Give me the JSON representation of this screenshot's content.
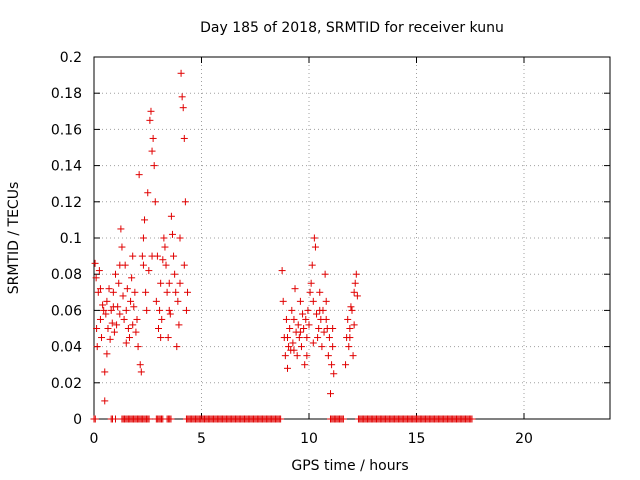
{
  "chart_data": {
    "type": "scatter",
    "title": "Day 185 of 2018, SRMTID for receiver kunu",
    "xlabel": "GPS time / hours",
    "ylabel": "SRMTID / TECUs",
    "xlim": [
      0,
      24
    ],
    "ylim": [
      0,
      0.2
    ],
    "xticks": [
      0,
      5,
      10,
      15,
      20
    ],
    "xtick_labels": [
      "0",
      "5",
      "10",
      "15",
      "20"
    ],
    "yticks": [
      0,
      0.02,
      0.04,
      0.06,
      0.08,
      0.1,
      0.12,
      0.14,
      0.16,
      0.18,
      0.2
    ],
    "ytick_labels": [
      "0",
      "0.02",
      "0.04",
      "0.06",
      "0.08",
      "0.1",
      "0.12",
      "0.14",
      "0.16",
      "0.18",
      "0.2"
    ],
    "grid": true,
    "marker": "+",
    "color": "#e00000",
    "series": [
      {
        "name": "SRMTID",
        "points": [
          [
            0.05,
            0.086
          ],
          [
            0.1,
            0.078
          ],
          [
            0.12,
            0.05
          ],
          [
            0.15,
            0.04
          ],
          [
            0.2,
            0.07
          ],
          [
            0.25,
            0.082
          ],
          [
            0.3,
            0.055
          ],
          [
            0.35,
            0.045
          ],
          [
            0.4,
            0.063
          ],
          [
            0.45,
            0.06
          ],
          [
            0.5,
            0.026
          ],
          [
            0.55,
            0.058
          ],
          [
            0.6,
            0.065
          ],
          [
            0.65,
            0.05
          ],
          [
            0.7,
            0.072
          ],
          [
            0.75,
            0.044
          ],
          [
            0.8,
            0.06
          ],
          [
            0.85,
            0.053
          ],
          [
            0.9,
            0.07
          ],
          [
            0.95,
            0.048
          ],
          [
            1.0,
            0.08
          ],
          [
            1.05,
            0.052
          ],
          [
            1.1,
            0.062
          ],
          [
            1.15,
            0.075
          ],
          [
            1.2,
            0.058
          ],
          [
            1.25,
            0.105
          ],
          [
            1.3,
            0.095
          ],
          [
            1.35,
            0.068
          ],
          [
            1.4,
            0.055
          ],
          [
            1.45,
            0.085
          ],
          [
            1.5,
            0.06
          ],
          [
            1.55,
            0.072
          ],
          [
            1.6,
            0.05
          ],
          [
            1.65,
            0.045
          ],
          [
            1.7,
            0.065
          ],
          [
            1.75,
            0.078
          ],
          [
            1.8,
            0.09
          ],
          [
            1.85,
            0.062
          ],
          [
            1.9,
            0.07
          ],
          [
            1.95,
            0.048
          ],
          [
            2.0,
            0.055
          ],
          [
            2.05,
            0.04
          ],
          [
            2.1,
            0.135
          ],
          [
            2.15,
            0.03
          ],
          [
            2.2,
            0.026
          ],
          [
            2.25,
            0.09
          ],
          [
            2.3,
            0.1
          ],
          [
            2.35,
            0.11
          ],
          [
            2.4,
            0.07
          ],
          [
            2.45,
            0.06
          ],
          [
            2.5,
            0.125
          ],
          [
            2.55,
            0.082
          ],
          [
            2.6,
            0.165
          ],
          [
            2.65,
            0.17
          ],
          [
            2.7,
            0.148
          ],
          [
            2.75,
            0.155
          ],
          [
            2.8,
            0.14
          ],
          [
            2.85,
            0.12
          ],
          [
            2.9,
            0.065
          ],
          [
            2.95,
            0.09
          ],
          [
            3.0,
            0.05
          ],
          [
            3.05,
            0.06
          ],
          [
            3.1,
            0.075
          ],
          [
            3.15,
            0.055
          ],
          [
            3.2,
            0.088
          ],
          [
            3.25,
            0.1
          ],
          [
            3.3,
            0.095
          ],
          [
            3.35,
            0.085
          ],
          [
            3.4,
            0.07
          ],
          [
            3.45,
            0.045
          ],
          [
            3.5,
            0.06
          ],
          [
            3.55,
            0.058
          ],
          [
            3.6,
            0.112
          ],
          [
            3.65,
            0.102
          ],
          [
            3.7,
            0.09
          ],
          [
            3.75,
            0.08
          ],
          [
            3.8,
            0.07
          ],
          [
            3.85,
            0.04
          ],
          [
            3.9,
            0.065
          ],
          [
            3.95,
            0.052
          ],
          [
            4.0,
            0.075
          ],
          [
            4.05,
            0.191
          ],
          [
            4.1,
            0.178
          ],
          [
            4.15,
            0.172
          ],
          [
            4.2,
            0.155
          ],
          [
            4.25,
            0.12
          ],
          [
            4.3,
            0.06
          ],
          [
            4.35,
            0.07
          ],
          [
            0.3,
            0.072
          ],
          [
            0.6,
            0.036
          ],
          [
            0.9,
            0.062
          ],
          [
            1.2,
            0.085
          ],
          [
            1.5,
            0.042
          ],
          [
            1.8,
            0.052
          ],
          [
            2.3,
            0.085
          ],
          [
            2.7,
            0.09
          ],
          [
            3.1,
            0.045
          ],
          [
            3.5,
            0.075
          ],
          [
            4.0,
            0.1
          ],
          [
            4.2,
            0.085
          ],
          [
            0.5,
            0.01
          ],
          [
            1.0,
            0.0
          ],
          [
            8.75,
            0.082
          ],
          [
            8.8,
            0.065
          ],
          [
            8.85,
            0.045
          ],
          [
            8.9,
            0.035
          ],
          [
            8.95,
            0.055
          ],
          [
            9.0,
            0.028
          ],
          [
            9.05,
            0.04
          ],
          [
            9.1,
            0.05
          ],
          [
            9.15,
            0.038
          ],
          [
            9.2,
            0.06
          ],
          [
            9.25,
            0.042
          ],
          [
            9.3,
            0.055
          ],
          [
            9.35,
            0.072
          ],
          [
            9.4,
            0.048
          ],
          [
            9.45,
            0.035
          ],
          [
            9.5,
            0.052
          ],
          [
            9.55,
            0.045
          ],
          [
            9.6,
            0.065
          ],
          [
            9.65,
            0.04
          ],
          [
            9.7,
            0.058
          ],
          [
            9.75,
            0.05
          ],
          [
            9.8,
            0.03
          ],
          [
            9.85,
            0.055
          ],
          [
            9.9,
            0.045
          ],
          [
            9.95,
            0.06
          ],
          [
            10.0,
            0.052
          ],
          [
            10.05,
            0.07
          ],
          [
            10.1,
            0.075
          ],
          [
            10.15,
            0.085
          ],
          [
            10.2,
            0.065
          ],
          [
            10.25,
            0.1
          ],
          [
            10.3,
            0.095
          ],
          [
            10.35,
            0.058
          ],
          [
            10.4,
            0.045
          ],
          [
            10.45,
            0.05
          ],
          [
            10.5,
            0.07
          ],
          [
            10.55,
            0.055
          ],
          [
            10.6,
            0.04
          ],
          [
            10.65,
            0.06
          ],
          [
            10.7,
            0.048
          ],
          [
            10.75,
            0.08
          ],
          [
            10.8,
            0.065
          ],
          [
            10.85,
            0.05
          ],
          [
            10.9,
            0.035
          ],
          [
            10.95,
            0.045
          ],
          [
            11.0,
            0.014
          ],
          [
            11.05,
            0.03
          ],
          [
            11.1,
            0.04
          ],
          [
            11.15,
            0.025
          ],
          [
            11.7,
            0.03
          ],
          [
            11.75,
            0.045
          ],
          [
            11.8,
            0.055
          ],
          [
            11.85,
            0.04
          ],
          [
            11.9,
            0.05
          ],
          [
            11.95,
            0.062
          ],
          [
            12.0,
            0.06
          ],
          [
            12.05,
            0.035
          ],
          [
            12.1,
            0.07
          ],
          [
            12.15,
            0.075
          ],
          [
            12.2,
            0.08
          ],
          [
            12.25,
            0.068
          ],
          [
            9.0,
            0.045
          ],
          [
            9.3,
            0.038
          ],
          [
            9.6,
            0.048
          ],
          [
            9.9,
            0.035
          ],
          [
            10.2,
            0.042
          ],
          [
            10.5,
            0.06
          ],
          [
            10.8,
            0.055
          ],
          [
            11.1,
            0.05
          ],
          [
            11.9,
            0.045
          ],
          [
            12.1,
            0.052
          ]
        ]
      },
      {
        "name": "zero-level",
        "x_ranges": [
          [
            0.0,
            0.1
          ],
          [
            0.8,
            0.9
          ],
          [
            1.3,
            2.6
          ],
          [
            2.9,
            3.2
          ],
          [
            3.4,
            3.6
          ],
          [
            4.3,
            8.7
          ],
          [
            11.0,
            11.6
          ],
          [
            12.3,
            17.6
          ]
        ],
        "y": 0
      }
    ]
  }
}
